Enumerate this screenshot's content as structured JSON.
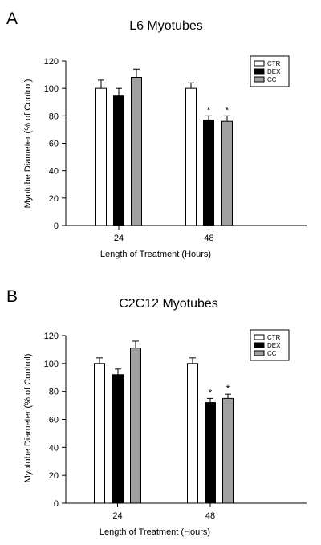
{
  "chart_data": [
    {
      "panel": "A",
      "type": "bar",
      "title": "L6 Myotubes",
      "xlabel": "Length of Treatment (Hours)",
      "ylabel": "Myotube Diameter (% of Control)",
      "categories": [
        "24",
        "48"
      ],
      "ylim": [
        0,
        120
      ],
      "yticks": [
        0,
        20,
        40,
        60,
        80,
        100,
        120
      ],
      "grid": false,
      "legend_position": "top-right",
      "series": [
        {
          "name": "CTR",
          "color": "#ffffff",
          "values": [
            100,
            100
          ],
          "errors": [
            6,
            4
          ],
          "significance": [
            "",
            ""
          ]
        },
        {
          "name": "DEX",
          "color": "#000000",
          "values": [
            95,
            77
          ],
          "errors": [
            5,
            3
          ],
          "significance": [
            "",
            "*"
          ]
        },
        {
          "name": "CC",
          "color": "#a0a0a0",
          "values": [
            108,
            76
          ],
          "errors": [
            6,
            4
          ],
          "significance": [
            "",
            "*"
          ]
        }
      ]
    },
    {
      "panel": "B",
      "type": "bar",
      "title": "C2C12 Myotubes",
      "xlabel": "Length of Treatment (Hours)",
      "ylabel": "Myotube Diameter (% of Control)",
      "categories": [
        "24",
        "48"
      ],
      "ylim": [
        0,
        120
      ],
      "yticks": [
        0,
        20,
        40,
        60,
        80,
        100,
        120
      ],
      "grid": false,
      "legend_position": "top-right",
      "series": [
        {
          "name": "CTR",
          "color": "#ffffff",
          "values": [
            100,
            100
          ],
          "errors": [
            4,
            4
          ],
          "significance": [
            "",
            ""
          ]
        },
        {
          "name": "DEX",
          "color": "#000000",
          "values": [
            92,
            72
          ],
          "errors": [
            4,
            3
          ],
          "significance": [
            "",
            "*"
          ]
        },
        {
          "name": "CC",
          "color": "#a0a0a0",
          "values": [
            111,
            75
          ],
          "errors": [
            5,
            3
          ],
          "significance": [
            "",
            "*"
          ]
        }
      ]
    }
  ]
}
